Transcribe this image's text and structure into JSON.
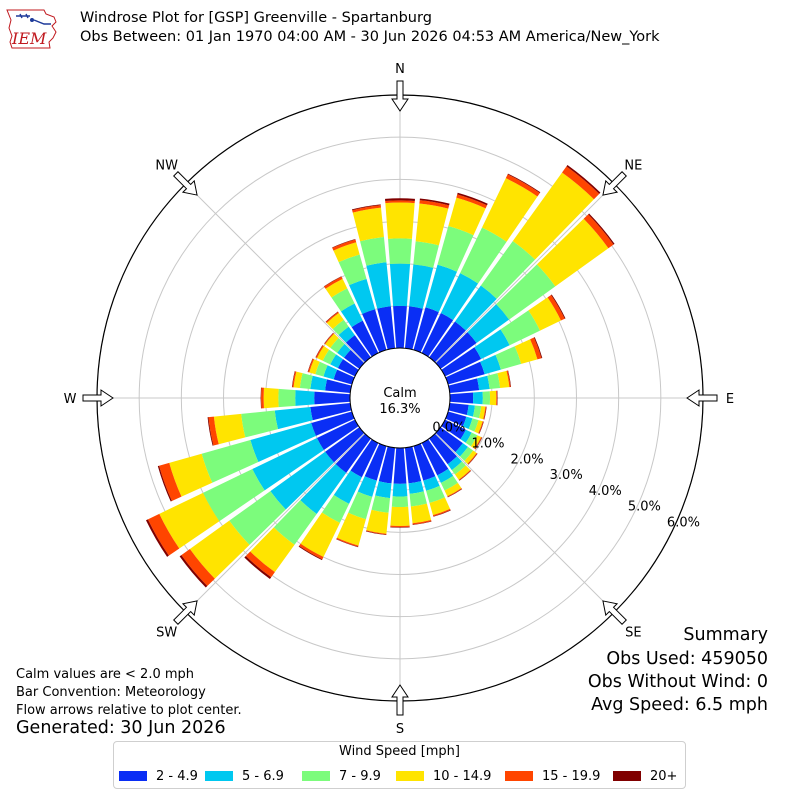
{
  "header": {
    "logo_text": "IEM",
    "title": "Windrose Plot for [GSP] Greenville - Spartanburg",
    "subtitle": "Obs Between: 01 Jan 1970 04:00 AM - 30 Jun 2026 04:53 AM America/New_York"
  },
  "notes": {
    "calm_note": "Calm values are < 2.0 mph",
    "bar_convention": "Bar Convention: Meteorology",
    "flow_arrows": "Flow arrows relative to plot center.",
    "generated": "Generated: 30 Jun 2026"
  },
  "summary": {
    "title": "Summary",
    "obs_used": "Obs Used: 459050",
    "obs_without_wind": "Obs Without Wind: 0",
    "avg_speed": "Avg Speed: 6.5 mph"
  },
  "chart_data": {
    "type": "windrose",
    "calm_label": "Calm",
    "calm_percent": "16.3%",
    "directions": [
      "N",
      "NE",
      "E",
      "SE",
      "S",
      "SW",
      "W",
      "NW"
    ],
    "radial_ticks": [
      "0.0%",
      "1.0%",
      "2.0%",
      "3.0%",
      "4.0%",
      "5.0%",
      "6.0%"
    ],
    "rmax": 6.0,
    "legend_title": "Wind Speed [mph]",
    "bins": [
      "2 - 4.9",
      "5 - 6.9",
      "7 - 9.9",
      "10 - 14.9",
      "15 - 19.9",
      "20+"
    ],
    "colors": [
      "#0a2ef5",
      "#00c8f0",
      "#7cfc7c",
      "#ffe400",
      "#ff4500",
      "#800000"
    ],
    "sectors_deg": [
      0,
      10,
      20,
      30,
      40,
      50,
      60,
      70,
      80,
      90,
      100,
      110,
      120,
      130,
      140,
      150,
      160,
      170,
      180,
      190,
      200,
      210,
      220,
      230,
      240,
      250,
      260,
      270,
      280,
      290,
      300,
      310,
      320,
      330,
      340,
      350
    ],
    "cumulative_percent": [
      [
        1.0,
        2.0,
        2.6,
        3.45,
        3.5,
        3.55
      ],
      [
        1.0,
        2.0,
        2.55,
        3.45,
        3.53,
        3.57
      ],
      [
        1.05,
        2.1,
        3.05,
        3.75,
        3.83,
        3.87
      ],
      [
        1.05,
        2.1,
        3.3,
        4.6,
        4.7,
        4.72
      ],
      [
        1.05,
        2.1,
        3.4,
        5.4,
        5.58,
        5.62
      ],
      [
        1.05,
        2.0,
        3.35,
        4.9,
        5.05,
        5.08
      ],
      [
        0.95,
        1.7,
        2.5,
        3.05,
        3.15,
        3.17
      ],
      [
        0.9,
        1.3,
        1.8,
        2.2,
        2.3,
        2.32
      ],
      [
        0.7,
        0.95,
        1.2,
        1.42,
        1.45,
        1.46
      ],
      [
        0.55,
        0.78,
        0.95,
        1.1,
        1.12,
        1.13
      ],
      [
        0.45,
        0.6,
        0.75,
        0.85,
        0.87,
        0.88
      ],
      [
        0.45,
        0.6,
        0.75,
        0.85,
        0.87,
        0.88
      ],
      [
        0.55,
        0.7,
        0.85,
        0.95,
        0.97,
        0.98
      ],
      [
        0.65,
        0.8,
        0.95,
        1.05,
        1.07,
        1.08
      ],
      [
        0.75,
        0.92,
        1.05,
        1.2,
        1.22,
        1.23
      ],
      [
        0.85,
        1.05,
        1.25,
        1.4,
        1.42,
        1.43
      ],
      [
        0.85,
        1.1,
        1.4,
        1.7,
        1.73,
        1.74
      ],
      [
        0.85,
        1.1,
        1.4,
        1.8,
        1.83,
        1.84
      ],
      [
        0.85,
        1.15,
        1.4,
        1.85,
        1.88,
        1.89
      ],
      [
        0.85,
        1.2,
        1.55,
        2.05,
        2.07,
        2.08
      ],
      [
        0.85,
        1.25,
        1.8,
        2.45,
        2.48,
        2.49
      ],
      [
        0.9,
        1.6,
        2.1,
        3.0,
        3.06,
        3.08
      ],
      [
        1.0,
        2.2,
        3.1,
        3.9,
        4.05,
        4.1
      ],
      [
        1.0,
        2.6,
        3.8,
        4.95,
        5.2,
        5.25
      ],
      [
        1.0,
        2.7,
        4.0,
        5.15,
        5.45,
        5.5
      ],
      [
        1.0,
        2.5,
        3.7,
        4.5,
        4.75,
        4.78
      ],
      [
        0.95,
        1.8,
        2.6,
        3.25,
        3.38,
        3.4
      ],
      [
        0.85,
        1.3,
        1.7,
        2.05,
        2.11,
        2.12
      ],
      [
        0.6,
        0.95,
        1.2,
        1.35,
        1.38,
        1.39
      ],
      [
        0.45,
        0.7,
        0.9,
        1.05,
        1.08,
        1.09
      ],
      [
        0.45,
        0.65,
        0.85,
        1.0,
        1.03,
        1.04
      ],
      [
        0.45,
        0.65,
        0.85,
        1.0,
        1.02,
        1.03
      ],
      [
        0.65,
        0.9,
        1.1,
        1.3,
        1.33,
        1.34
      ],
      [
        0.85,
        1.3,
        1.7,
        1.95,
        2.01,
        2.02
      ],
      [
        1.0,
        1.75,
        2.35,
        2.65,
        2.72,
        2.73
      ],
      [
        1.0,
        2.05,
        2.65,
        3.35,
        3.41,
        3.43
      ]
    ]
  }
}
